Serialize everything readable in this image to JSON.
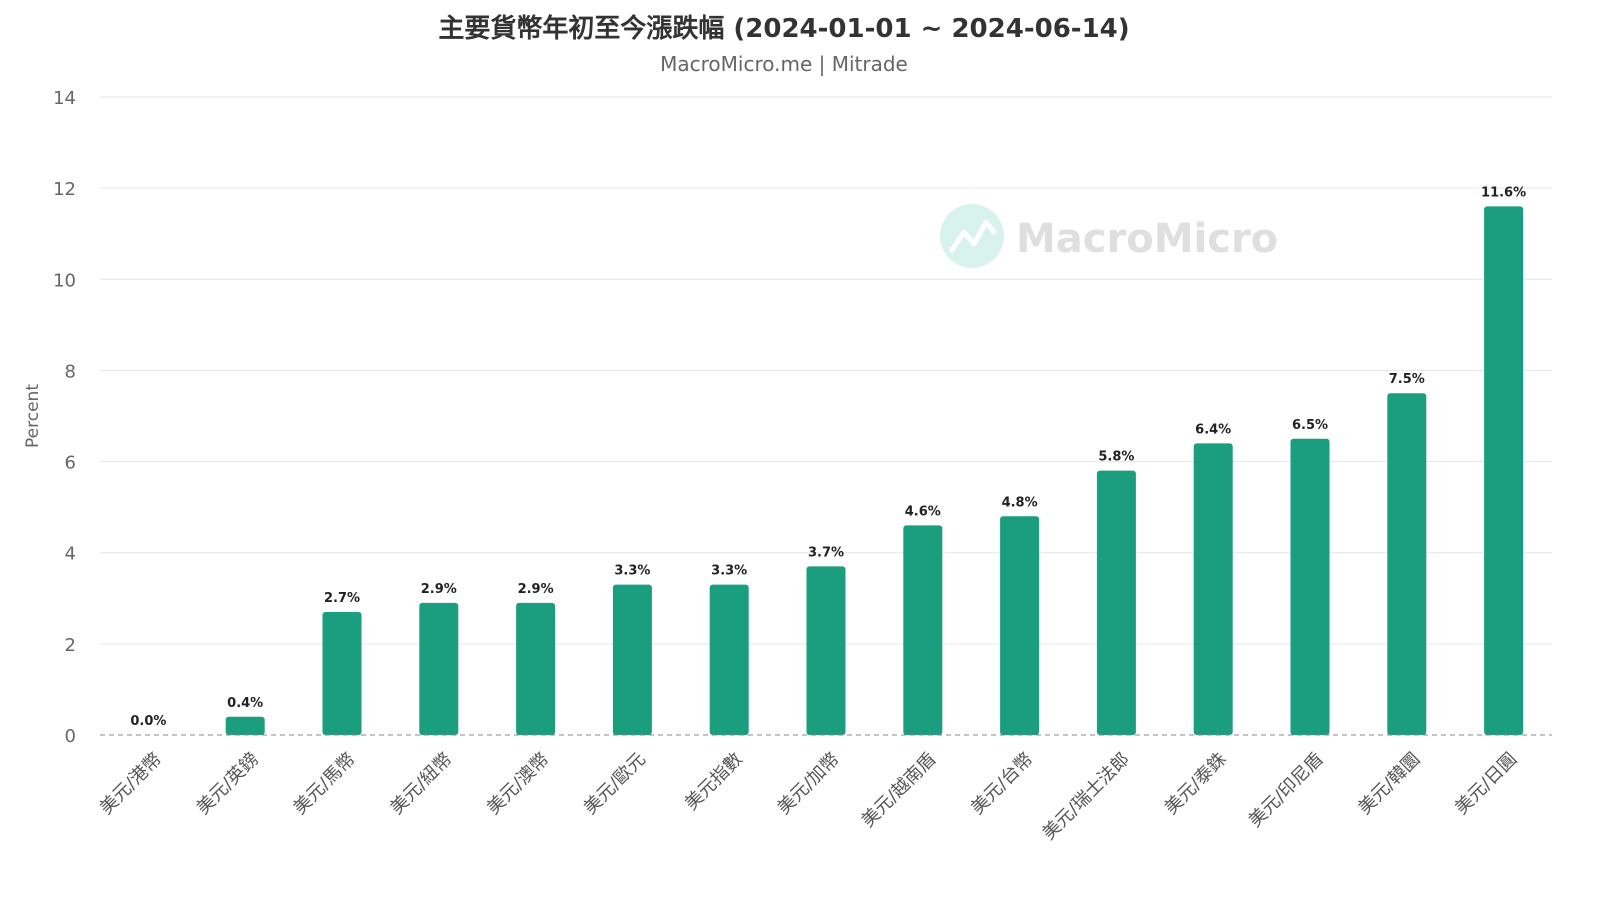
{
  "chart_data": {
    "type": "bar",
    "title": "主要貨幣年初至今漲跌幅 (2024-01-01 ~ 2024-06-14)",
    "subtitle": "MacroMicro.me | Mitrade",
    "ylabel": "Percent",
    "xlabel": "",
    "ylim": [
      0,
      14
    ],
    "yticks": [
      0,
      2,
      4,
      6,
      8,
      10,
      12,
      14
    ],
    "categories": [
      "美元/港幣",
      "美元/英鎊",
      "美元/馬幣",
      "美元/紐幣",
      "美元/澳幣",
      "美元/歐元",
      "美元指數",
      "美元/加幣",
      "美元/越南盾",
      "美元/台幣",
      "美元/瑞士法郎",
      "美元/泰銖",
      "美元/印尼盾",
      "美元/韓圜",
      "美元/日圓"
    ],
    "values": [
      0.0,
      0.4,
      2.7,
      2.9,
      2.9,
      3.3,
      3.3,
      3.7,
      4.6,
      4.8,
      5.8,
      6.4,
      6.5,
      7.5,
      11.6
    ],
    "data_labels": [
      "0.0%",
      "0.4%",
      "2.7%",
      "2.9%",
      "2.9%",
      "3.3%",
      "3.3%",
      "3.7%",
      "4.6%",
      "4.8%",
      "5.8%",
      "6.4%",
      "6.5%",
      "7.5%",
      "11.6%"
    ],
    "grid": true,
    "bar_color": "#1a9e7e",
    "watermark": "MacroMicro",
    "watermark_color": "#cfeee6"
  }
}
